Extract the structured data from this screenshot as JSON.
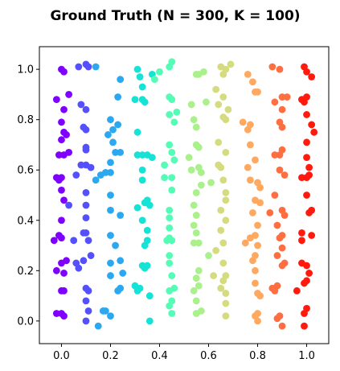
{
  "chart_data": {
    "type": "scatter",
    "title": "Ground Truth (N = 300, K = 100)",
    "xlabel": "",
    "ylabel": "",
    "xlim": [
      -0.09,
      1.09
    ],
    "ylim": [
      -0.09,
      1.09
    ],
    "xticks": [
      0.0,
      0.2,
      0.4,
      0.6,
      0.8,
      1.0
    ],
    "yticks": [
      0.0,
      0.2,
      0.4,
      0.6,
      0.8,
      1.0
    ],
    "xtick_labels": [
      "0.0",
      "0.2",
      "0.4",
      "0.6",
      "0.8",
      "1.0"
    ],
    "ytick_labels": [
      "0.0",
      "0.2",
      "0.4",
      "0.6",
      "0.8",
      "1.0"
    ],
    "grid": false,
    "legend": "none",
    "colormap": "rainbow",
    "clusters": [
      {
        "color": "#7f00ff",
        "points": [
          [
            0.0,
            1.0
          ],
          [
            0.01,
            0.99
          ],
          [
            -0.02,
            0.88
          ],
          [
            0.01,
            0.84
          ],
          [
            0.0,
            0.79
          ],
          [
            0.01,
            0.75
          ],
          [
            0.0,
            0.72
          ],
          [
            -0.01,
            0.66
          ],
          [
            0.01,
            0.66
          ],
          [
            0.0,
            0.57
          ],
          [
            -0.01,
            0.56
          ],
          [
            0.0,
            0.52
          ],
          [
            0.01,
            0.48
          ],
          [
            0.0,
            0.4
          ],
          [
            0.0,
            0.33
          ],
          [
            -0.01,
            0.34
          ],
          [
            0.0,
            0.23
          ],
          [
            0.01,
            0.19
          ],
          [
            0.0,
            0.12
          ],
          [
            0.01,
            0.12
          ],
          [
            0.0,
            0.03
          ],
          [
            0.01,
            0.02
          ],
          [
            -0.03,
            0.32
          ],
          [
            0.02,
            0.24
          ],
          [
            0.02,
            0.74
          ],
          [
            -0.02,
            0.2
          ],
          [
            -0.02,
            0.57
          ],
          [
            0.03,
            0.9
          ],
          [
            0.03,
            0.67
          ],
          [
            -0.02,
            0.03
          ]
        ]
      },
      {
        "color": "#5450fc",
        "points": [
          [
            0.07,
            1.01
          ],
          [
            0.1,
            1.02
          ],
          [
            0.08,
            0.86
          ],
          [
            0.1,
            0.84
          ],
          [
            0.09,
            0.77
          ],
          [
            0.1,
            0.76
          ],
          [
            0.1,
            0.69
          ],
          [
            0.1,
            0.68
          ],
          [
            0.08,
            0.62
          ],
          [
            0.1,
            0.62
          ],
          [
            0.06,
            0.58
          ],
          [
            0.1,
            0.51
          ],
          [
            0.1,
            0.46
          ],
          [
            0.1,
            0.41
          ],
          [
            0.1,
            0.35
          ],
          [
            0.11,
            0.32
          ],
          [
            0.06,
            0.23
          ],
          [
            0.09,
            0.24
          ],
          [
            0.1,
            0.13
          ],
          [
            0.11,
            0.12
          ],
          [
            0.1,
            0.08
          ],
          [
            0.11,
            0.04
          ],
          [
            0.1,
            0.0
          ],
          [
            0.05,
            0.32
          ],
          [
            0.12,
            0.61
          ],
          [
            0.03,
            0.46
          ],
          [
            0.07,
            0.21
          ],
          [
            0.12,
            0.26
          ],
          [
            0.11,
            1.01
          ],
          [
            0.09,
            0.35
          ]
        ]
      },
      {
        "color": "#2ba8f0",
        "points": [
          [
            0.14,
            1.01
          ],
          [
            0.2,
            0.8
          ],
          [
            0.21,
            0.71
          ],
          [
            0.2,
            0.63
          ],
          [
            0.16,
            0.58
          ],
          [
            0.18,
            0.59
          ],
          [
            0.2,
            0.59
          ],
          [
            0.14,
            0.56
          ],
          [
            0.2,
            0.5
          ],
          [
            0.2,
            0.44
          ],
          [
            0.2,
            0.34
          ],
          [
            0.22,
            0.3
          ],
          [
            0.2,
            0.23
          ],
          [
            0.24,
            0.24
          ],
          [
            0.2,
            0.18
          ],
          [
            0.17,
            0.04
          ],
          [
            0.18,
            0.04
          ],
          [
            0.2,
            0.02
          ],
          [
            0.15,
            -0.02
          ],
          [
            0.24,
            0.96
          ],
          [
            0.23,
            0.89
          ],
          [
            0.24,
            0.67
          ],
          [
            0.23,
            0.78
          ],
          [
            0.24,
            0.42
          ],
          [
            0.23,
            0.12
          ],
          [
            0.24,
            0.13
          ],
          [
            0.25,
            0.19
          ],
          [
            0.19,
            0.74
          ],
          [
            0.22,
            0.67
          ],
          [
            0.21,
            0.76
          ]
        ]
      },
      {
        "color": "#15e3d6",
        "points": [
          [
            0.31,
            1.0
          ],
          [
            0.32,
            0.97
          ],
          [
            0.33,
            0.93
          ],
          [
            0.33,
            0.88
          ],
          [
            0.34,
            0.87
          ],
          [
            0.31,
            0.75
          ],
          [
            0.31,
            0.66
          ],
          [
            0.33,
            0.66
          ],
          [
            0.35,
            0.66
          ],
          [
            0.33,
            0.6
          ],
          [
            0.33,
            0.56
          ],
          [
            0.34,
            0.47
          ],
          [
            0.35,
            0.48
          ],
          [
            0.36,
            0.46
          ],
          [
            0.33,
            0.4
          ],
          [
            0.35,
            0.36
          ],
          [
            0.35,
            0.32
          ],
          [
            0.34,
            0.3
          ],
          [
            0.33,
            0.22
          ],
          [
            0.35,
            0.22
          ],
          [
            0.31,
            0.12
          ],
          [
            0.3,
            0.14
          ],
          [
            0.36,
            0.1
          ],
          [
            0.36,
            0.0
          ],
          [
            0.37,
            0.65
          ],
          [
            0.3,
            0.88
          ],
          [
            0.31,
            0.45
          ],
          [
            0.32,
            0.13
          ],
          [
            0.34,
            0.21
          ],
          [
            0.37,
            0.98
          ]
        ]
      },
      {
        "color": "#55fcb6",
        "points": [
          [
            0.44,
            1.01
          ],
          [
            0.45,
            1.03
          ],
          [
            0.4,
            0.99
          ],
          [
            0.44,
            0.89
          ],
          [
            0.45,
            0.88
          ],
          [
            0.44,
            0.82
          ],
          [
            0.46,
            0.79
          ],
          [
            0.44,
            0.7
          ],
          [
            0.45,
            0.67
          ],
          [
            0.42,
            0.62
          ],
          [
            0.45,
            0.57
          ],
          [
            0.45,
            0.52
          ],
          [
            0.44,
            0.44
          ],
          [
            0.44,
            0.41
          ],
          [
            0.44,
            0.37
          ],
          [
            0.44,
            0.33
          ],
          [
            0.45,
            0.32
          ],
          [
            0.44,
            0.26
          ],
          [
            0.44,
            0.23
          ],
          [
            0.45,
            0.18
          ],
          [
            0.44,
            0.12
          ],
          [
            0.46,
            0.13
          ],
          [
            0.45,
            0.08
          ],
          [
            0.45,
            0.03
          ],
          [
            0.38,
            0.96
          ],
          [
            0.47,
            0.83
          ],
          [
            0.46,
            0.64
          ],
          [
            0.42,
            0.57
          ],
          [
            0.43,
            0.32
          ],
          [
            0.44,
            0.06
          ]
        ]
      },
      {
        "color": "#aaf18c",
        "points": [
          [
            0.55,
            0.98
          ],
          [
            0.56,
            0.98
          ],
          [
            0.53,
            0.86
          ],
          [
            0.54,
            0.8
          ],
          [
            0.55,
            0.77
          ],
          [
            0.55,
            0.7
          ],
          [
            0.52,
            0.65
          ],
          [
            0.56,
            0.61
          ],
          [
            0.57,
            0.59
          ],
          [
            0.57,
            0.54
          ],
          [
            0.55,
            0.51
          ],
          [
            0.54,
            0.46
          ],
          [
            0.55,
            0.42
          ],
          [
            0.54,
            0.38
          ],
          [
            0.55,
            0.35
          ],
          [
            0.54,
            0.31
          ],
          [
            0.56,
            0.31
          ],
          [
            0.6,
            0.26
          ],
          [
            0.56,
            0.2
          ],
          [
            0.55,
            0.17
          ],
          [
            0.54,
            0.12
          ],
          [
            0.55,
            0.08
          ],
          [
            0.57,
            0.04
          ],
          [
            0.55,
            0.03
          ],
          [
            0.58,
            0.99
          ],
          [
            0.61,
            0.55
          ],
          [
            0.59,
            0.87
          ],
          [
            0.56,
            0.69
          ],
          [
            0.53,
            0.6
          ],
          [
            0.56,
            0.14
          ]
        ]
      },
      {
        "color": "#d4dc7f",
        "points": [
          [
            0.65,
            1.01
          ],
          [
            0.66,
            0.98
          ],
          [
            0.69,
            1.02
          ],
          [
            0.66,
            0.89
          ],
          [
            0.68,
            0.84
          ],
          [
            0.66,
            0.81
          ],
          [
            0.67,
            0.8
          ],
          [
            0.64,
            0.71
          ],
          [
            0.67,
            0.67
          ],
          [
            0.65,
            0.61
          ],
          [
            0.64,
            0.62
          ],
          [
            0.66,
            0.56
          ],
          [
            0.67,
            0.51
          ],
          [
            0.65,
            0.44
          ],
          [
            0.67,
            0.4
          ],
          [
            0.65,
            0.36
          ],
          [
            0.66,
            0.31
          ],
          [
            0.63,
            0.28
          ],
          [
            0.66,
            0.23
          ],
          [
            0.67,
            0.18
          ],
          [
            0.65,
            0.13
          ],
          [
            0.67,
            0.11
          ],
          [
            0.67,
            0.07
          ],
          [
            0.67,
            0.02
          ],
          [
            0.63,
            0.92
          ],
          [
            0.64,
            0.86
          ],
          [
            0.67,
            0.48
          ],
          [
            0.62,
            0.18
          ],
          [
            0.66,
            0.16
          ],
          [
            0.67,
            1.0
          ]
        ]
      },
      {
        "color": "#ffa860",
        "points": [
          [
            0.76,
            0.98
          ],
          [
            0.78,
            0.95
          ],
          [
            0.79,
            0.91
          ],
          [
            0.8,
            0.91
          ],
          [
            0.74,
            0.79
          ],
          [
            0.76,
            0.76
          ],
          [
            0.77,
            0.78
          ],
          [
            0.77,
            0.7
          ],
          [
            0.79,
            0.64
          ],
          [
            0.76,
            0.61
          ],
          [
            0.8,
            0.55
          ],
          [
            0.81,
            0.53
          ],
          [
            0.79,
            0.48
          ],
          [
            0.78,
            0.43
          ],
          [
            0.8,
            0.38
          ],
          [
            0.77,
            0.33
          ],
          [
            0.79,
            0.34
          ],
          [
            0.8,
            0.3
          ],
          [
            0.79,
            0.26
          ],
          [
            0.78,
            0.24
          ],
          [
            0.79,
            0.2
          ],
          [
            0.8,
            0.11
          ],
          [
            0.81,
            0.1
          ],
          [
            0.8,
            0.03
          ],
          [
            0.79,
            0.02
          ],
          [
            0.77,
            0.56
          ],
          [
            0.81,
            0.47
          ],
          [
            0.75,
            0.31
          ],
          [
            0.79,
            0.15
          ],
          [
            0.8,
            0.0
          ]
        ]
      },
      {
        "color": "#ff6e41",
        "points": [
          [
            0.86,
            1.01
          ],
          [
            0.89,
            1.0
          ],
          [
            0.9,
            0.89
          ],
          [
            0.87,
            0.87
          ],
          [
            0.9,
            0.84
          ],
          [
            0.89,
            0.79
          ],
          [
            0.9,
            0.77
          ],
          [
            0.87,
            0.66
          ],
          [
            0.89,
            0.66
          ],
          [
            0.9,
            0.68
          ],
          [
            0.89,
            0.6
          ],
          [
            0.91,
            0.58
          ],
          [
            0.87,
            0.5
          ],
          [
            0.9,
            0.44
          ],
          [
            0.91,
            0.42
          ],
          [
            0.88,
            0.38
          ],
          [
            0.9,
            0.34
          ],
          [
            0.89,
            0.33
          ],
          [
            0.9,
            0.29
          ],
          [
            0.88,
            0.26
          ],
          [
            0.9,
            0.22
          ],
          [
            0.91,
            0.23
          ],
          [
            0.88,
            0.14
          ],
          [
            0.87,
            0.12
          ],
          [
            0.89,
            0.02
          ],
          [
            0.9,
            -0.02
          ],
          [
            0.92,
            0.89
          ],
          [
            0.85,
            0.43
          ],
          [
            0.86,
            0.13
          ],
          [
            0.88,
            0.01
          ]
        ]
      },
      {
        "color": "#ff1a0d",
        "points": [
          [
            0.99,
            1.01
          ],
          [
            1.0,
            0.99
          ],
          [
            1.02,
            0.97
          ],
          [
            0.98,
            0.88
          ],
          [
            0.99,
            0.87
          ],
          [
            1.0,
            0.89
          ],
          [
            1.0,
            0.82
          ],
          [
            1.02,
            0.78
          ],
          [
            1.03,
            0.75
          ],
          [
            1.0,
            0.71
          ],
          [
            1.0,
            0.65
          ],
          [
            1.01,
            0.61
          ],
          [
            0.98,
            0.57
          ],
          [
            1.0,
            0.57
          ],
          [
            1.01,
            0.58
          ],
          [
            1.0,
            0.5
          ],
          [
            1.02,
            0.44
          ],
          [
            1.01,
            0.43
          ],
          [
            0.98,
            0.35
          ],
          [
            0.98,
            0.32
          ],
          [
            1.02,
            0.34
          ],
          [
            0.98,
            0.23
          ],
          [
            1.0,
            0.22
          ],
          [
            1.01,
            0.19
          ],
          [
            0.99,
            0.15
          ],
          [
            1.0,
            0.16
          ],
          [
            0.96,
            0.12
          ],
          [
            1.0,
            0.05
          ],
          [
            0.99,
            0.03
          ],
          [
            0.99,
            -0.02
          ]
        ]
      }
    ]
  }
}
